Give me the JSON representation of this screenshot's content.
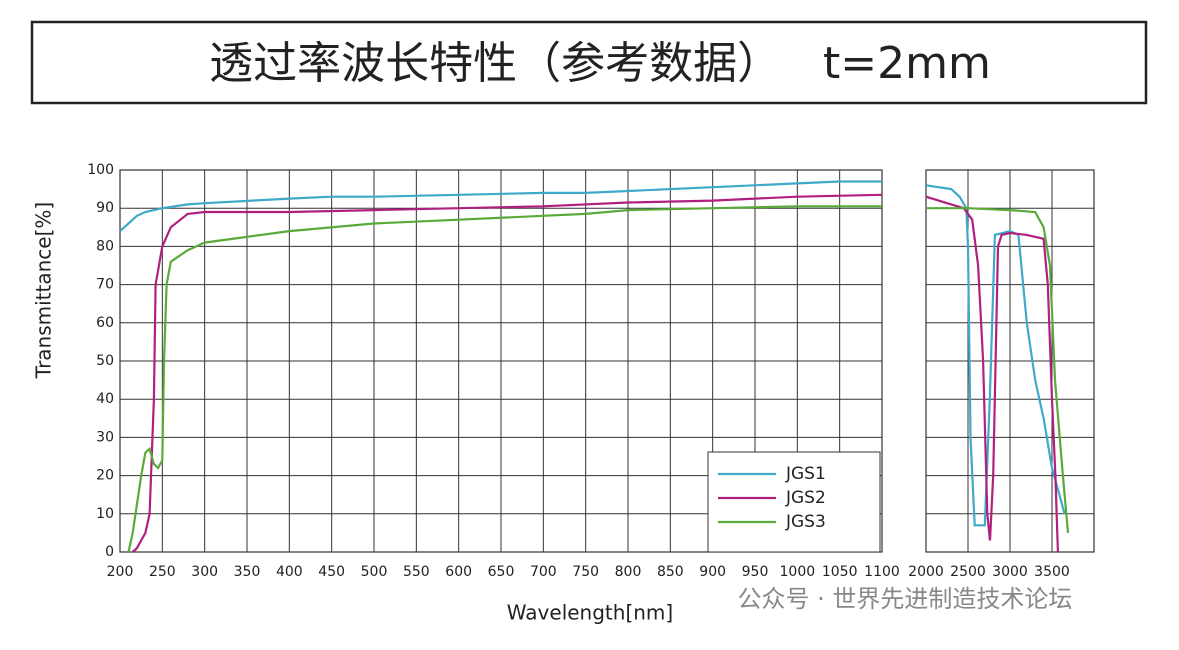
{
  "title": "透过率波长特性（参考数据）   t=2mm",
  "xlabel": "Wavelength[nm]",
  "ylabel": "Transmittance[%]",
  "watermark": "公众号 · 世界先进制造技术论坛",
  "chart_data": [
    {
      "type": "line",
      "xlim": [
        200,
        1100
      ],
      "ylim": [
        0,
        100
      ],
      "xticks": [
        200,
        250,
        300,
        350,
        400,
        450,
        500,
        550,
        600,
        650,
        700,
        750,
        800,
        850,
        900,
        950,
        1000,
        1050,
        1100
      ],
      "yticks": [
        0,
        10,
        20,
        30,
        40,
        50,
        60,
        70,
        80,
        90,
        100
      ],
      "grid": true,
      "legend": "lower right",
      "series": [
        {
          "name": "JGS1",
          "color": "#3fa9c9",
          "x": [
            200,
            210,
            220,
            230,
            250,
            280,
            300,
            400,
            450,
            500,
            600,
            700,
            750,
            800,
            900,
            1000,
            1050,
            1100
          ],
          "values": [
            84,
            86,
            88,
            89,
            90,
            91,
            91.3,
            92.5,
            93,
            93,
            93.5,
            94,
            94,
            94.5,
            95.5,
            96.5,
            97,
            97
          ]
        },
        {
          "name": "JGS2",
          "color": "#b0207f",
          "x": [
            215,
            220,
            230,
            235,
            240,
            242,
            250,
            260,
            280,
            300,
            400,
            500,
            600,
            700,
            800,
            900,
            1000,
            1100
          ],
          "values": [
            0,
            1,
            5,
            10,
            40,
            70,
            80,
            85,
            88.5,
            89,
            89,
            89.5,
            90,
            90.5,
            91.5,
            92,
            93,
            93.5
          ]
        },
        {
          "name": "JGS3",
          "color": "#5aaa3a",
          "x": [
            210,
            215,
            225,
            230,
            235,
            240,
            245,
            250,
            252,
            255,
            260,
            280,
            300,
            400,
            500,
            600,
            700,
            750,
            800,
            900,
            1000,
            1100
          ],
          "values": [
            0,
            5,
            20,
            26,
            27,
            23,
            22,
            24,
            50,
            70,
            76,
            79,
            81,
            84,
            86,
            87,
            88,
            88.5,
            89.5,
            90,
            90.5,
            90.5
          ]
        }
      ]
    },
    {
      "type": "line",
      "xlim": [
        2000,
        4000
      ],
      "ylim": [
        0,
        100
      ],
      "xticks": [
        2000,
        2500,
        3000,
        3500
      ],
      "grid": true,
      "series": [
        {
          "color": "#3fa9c9",
          "x": [
            2000,
            2300,
            2400,
            2480,
            2500,
            2530,
            2580,
            2700,
            2760,
            2820,
            3000,
            3100,
            3200,
            3300,
            3400,
            3500,
            3600,
            3650
          ],
          "values": [
            96,
            95,
            93,
            90,
            80,
            30,
            7,
            7,
            40,
            83,
            84,
            83,
            60,
            45,
            35,
            22,
            14,
            10
          ]
        },
        {
          "color": "#b0207f",
          "x": [
            2000,
            2300,
            2450,
            2550,
            2620,
            2680,
            2730,
            2762,
            2800,
            2857,
            2900,
            3000,
            3200,
            3400,
            3450,
            3500,
            3540,
            3570
          ],
          "values": [
            93,
            91,
            90,
            87,
            75,
            50,
            10,
            3,
            20,
            80,
            83,
            83.5,
            83,
            82,
            70,
            40,
            20,
            0
          ]
        },
        {
          "color": "#5aaa3a",
          "x": [
            2000,
            2300,
            2500,
            3000,
            3300,
            3400,
            3476,
            3536,
            3630,
            3690
          ],
          "values": [
            90,
            90,
            90,
            89.5,
            89,
            85,
            75,
            45,
            20,
            5
          ]
        }
      ]
    }
  ]
}
